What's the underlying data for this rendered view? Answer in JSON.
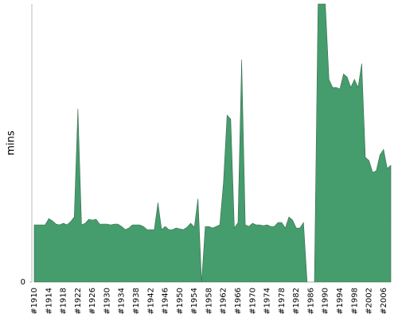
{
  "chart_data": {
    "type": "area",
    "y_label": "mins",
    "categories": [
      "#1910",
      null,
      null,
      null,
      "#1914",
      null,
      null,
      null,
      "#1918",
      null,
      null,
      null,
      "#1922",
      null,
      null,
      null,
      "#1926",
      null,
      null,
      null,
      "#1930",
      null,
      null,
      null,
      "#1934",
      null,
      null,
      null,
      "#1938",
      null,
      null,
      null,
      "#1942",
      null,
      null,
      null,
      "#1946",
      null,
      null,
      null,
      "#1950",
      null,
      null,
      null,
      "#1954",
      null,
      null,
      null,
      "#1958",
      null,
      null,
      null,
      "#1962",
      null,
      null,
      null,
      "#1966",
      null,
      null,
      null,
      "#1970",
      null,
      null,
      null,
      "#1974",
      null,
      null,
      null,
      "#1978",
      null,
      null,
      null,
      "#1982",
      null,
      null,
      null,
      "#1986",
      null,
      null,
      null,
      "#1990",
      null,
      null,
      null,
      "#1994",
      null,
      null,
      null,
      "#1998",
      null,
      null,
      null,
      "#2002",
      null,
      null,
      null,
      "#2006",
      null,
      null
    ],
    "values": [
      72,
      72,
      72,
      72,
      80,
      77,
      73,
      72,
      74,
      72,
      76,
      82,
      218,
      72,
      74,
      79,
      78,
      79,
      73,
      73,
      73,
      72,
      73,
      73,
      70,
      66,
      68,
      72,
      72,
      72,
      70,
      66,
      66,
      66,
      100,
      66,
      70,
      66,
      66,
      68,
      67,
      66,
      69,
      74,
      69,
      105,
      0,
      70,
      70,
      68,
      70,
      72,
      125,
      210,
      205,
      68,
      75,
      280,
      72,
      70,
      74,
      72,
      72,
      71,
      72,
      70,
      70,
      75,
      75,
      68,
      82,
      78,
      68,
      68,
      75,
      0,
      0,
      0,
      350,
      350,
      350,
      255,
      245,
      245,
      243,
      262,
      258,
      245,
      255,
      245,
      275,
      157,
      153,
      138,
      140,
      160,
      167,
      143,
      147
    ],
    "color": "#459c6c",
    "ylim": [
      0,
      350
    ],
    "yticks": [
      0
    ]
  }
}
